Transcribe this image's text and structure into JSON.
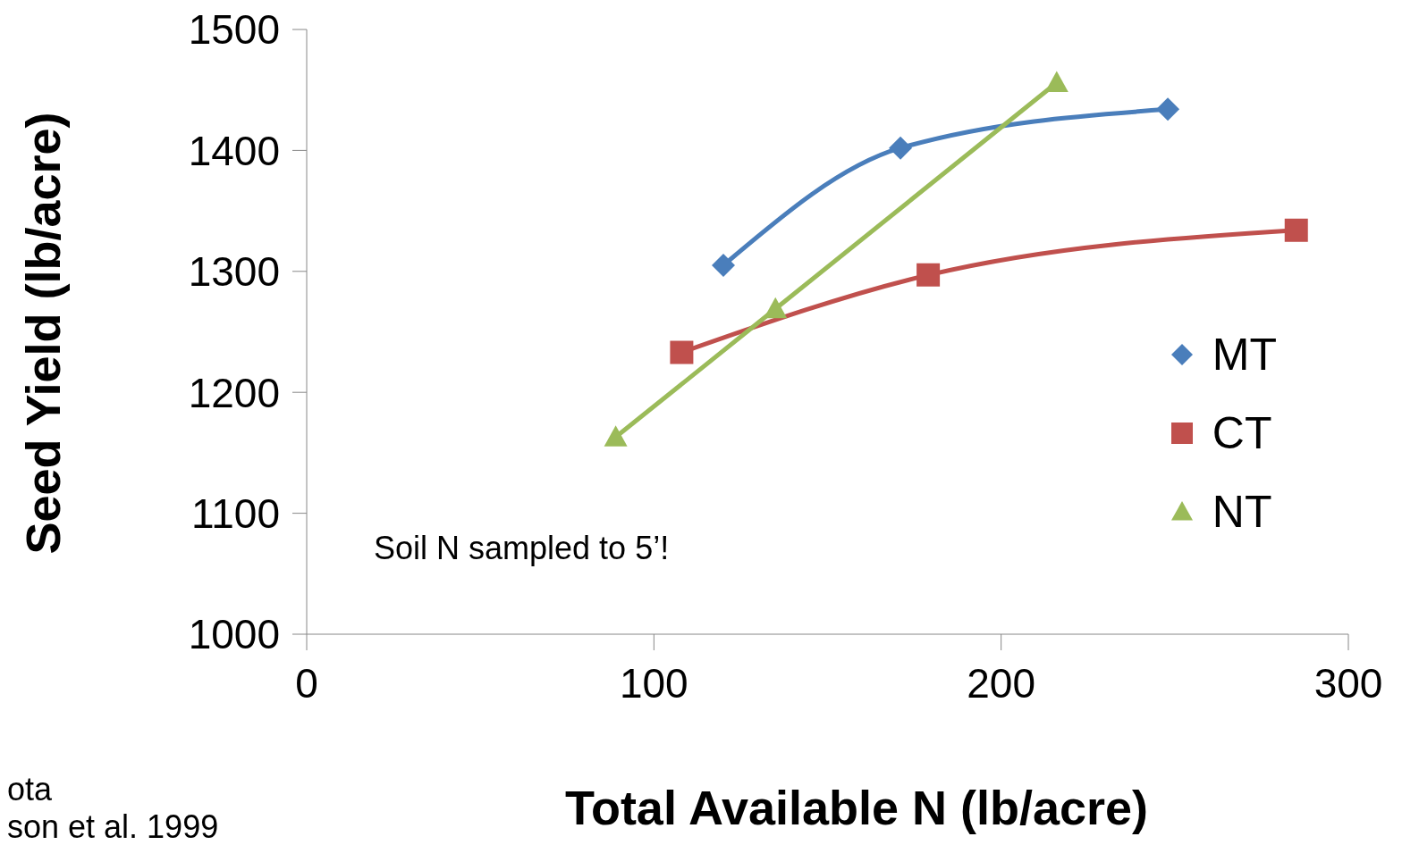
{
  "chart_data": {
    "type": "line",
    "xlabel": "Total Available N (lb/acre)",
    "ylabel": "Seed Yield (lb/acre)",
    "xlim": [
      0,
      300
    ],
    "xticks": [
      0,
      100,
      200,
      300
    ],
    "ylim": [
      1000,
      1500
    ],
    "yticks": [
      1000,
      1100,
      1200,
      1300,
      1400,
      1500
    ],
    "grid": false,
    "legend": "right",
    "line_style": "solid",
    "series": [
      {
        "name": "MT",
        "color": "#4a7ebb",
        "marker": "diamond",
        "x": [
          120,
          171,
          248
        ],
        "values": [
          1305,
          1402,
          1434
        ]
      },
      {
        "name": "CT",
        "color": "#c0504d",
        "marker": "square",
        "x": [
          108,
          179,
          285
        ],
        "values": [
          1233,
          1297,
          1334
        ]
      },
      {
        "name": "NT",
        "color": "#9bbb59",
        "marker": "triangle",
        "x": [
          89,
          135,
          216
        ],
        "values": [
          1163,
          1269,
          1456
        ]
      }
    ],
    "annotations": [
      "Soil N sampled to 5’!",
      "ota",
      "son et al. 1999"
    ]
  }
}
